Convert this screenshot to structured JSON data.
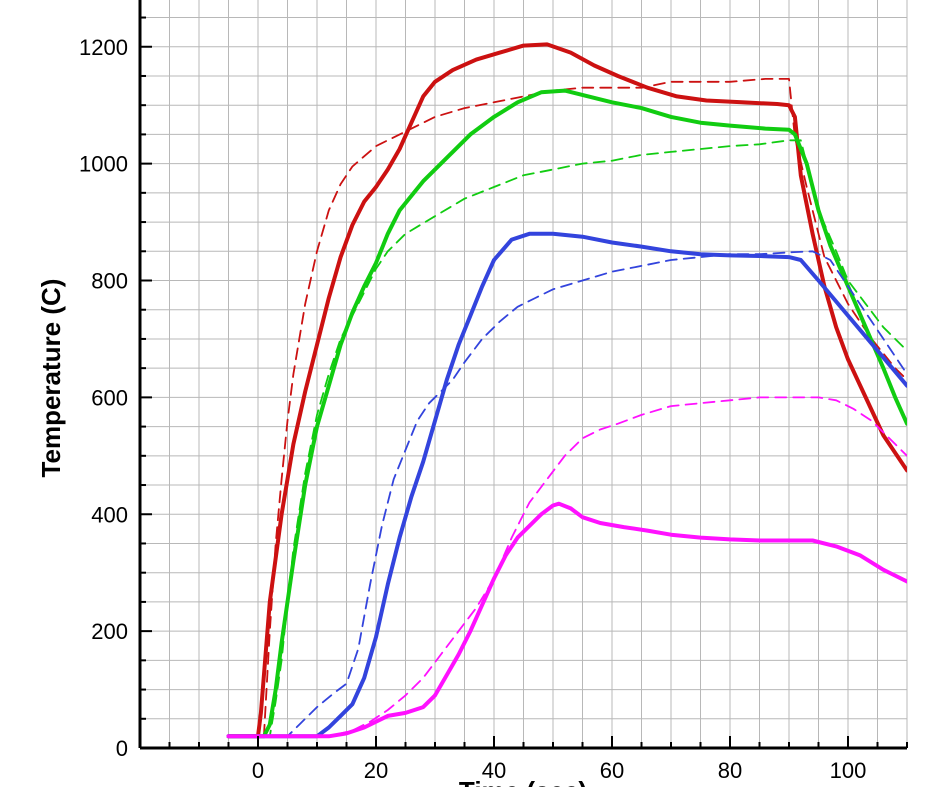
{
  "chart_data": {
    "type": "line",
    "title": "",
    "xlabel": "Time (sec)",
    "ylabel": "Temperature (C)",
    "xlim": [
      -20,
      110
    ],
    "ylim": [
      0,
      1280
    ],
    "grid": true,
    "x_ticks": [
      0,
      20,
      40,
      60,
      80,
      100
    ],
    "y_ticks": [
      0,
      200,
      400,
      600,
      800,
      1000,
      1200
    ],
    "series": [
      {
        "name": "red-solid",
        "color": "#cc1111",
        "style": "solid",
        "points": [
          [
            -5,
            20
          ],
          [
            0,
            20
          ],
          [
            0.5,
            60
          ],
          [
            2,
            250
          ],
          [
            4,
            400
          ],
          [
            6,
            520
          ],
          [
            8,
            610
          ],
          [
            10,
            690
          ],
          [
            12,
            770
          ],
          [
            14,
            840
          ],
          [
            16,
            895
          ],
          [
            18,
            935
          ],
          [
            20,
            960
          ],
          [
            22,
            990
          ],
          [
            24,
            1025
          ],
          [
            26,
            1070
          ],
          [
            28,
            1115
          ],
          [
            30,
            1140
          ],
          [
            33,
            1160
          ],
          [
            37,
            1178
          ],
          [
            41,
            1190
          ],
          [
            45,
            1202
          ],
          [
            49,
            1204
          ],
          [
            53,
            1190
          ],
          [
            57,
            1168
          ],
          [
            61,
            1150
          ],
          [
            66,
            1130
          ],
          [
            71,
            1115
          ],
          [
            76,
            1108
          ],
          [
            82,
            1105
          ],
          [
            88,
            1102
          ],
          [
            90,
            1100
          ],
          [
            90.5,
            1090
          ],
          [
            91,
            1080
          ],
          [
            92,
            980
          ],
          [
            94,
            880
          ],
          [
            96,
            790
          ],
          [
            98,
            720
          ],
          [
            100,
            665
          ],
          [
            103,
            600
          ],
          [
            106,
            535
          ],
          [
            110,
            475
          ]
        ]
      },
      {
        "name": "red-dashed",
        "color": "#cc1111",
        "style": "dashed",
        "points": [
          [
            -5,
            20
          ],
          [
            1,
            20
          ],
          [
            2,
            200
          ],
          [
            3,
            350
          ],
          [
            4,
            460
          ],
          [
            5,
            560
          ],
          [
            6,
            640
          ],
          [
            8,
            760
          ],
          [
            10,
            850
          ],
          [
            12,
            920
          ],
          [
            14,
            965
          ],
          [
            16,
            995
          ],
          [
            20,
            1030
          ],
          [
            25,
            1055
          ],
          [
            30,
            1080
          ],
          [
            35,
            1095
          ],
          [
            40,
            1105
          ],
          [
            45,
            1115
          ],
          [
            50,
            1125
          ],
          [
            55,
            1130
          ],
          [
            60,
            1130
          ],
          [
            65,
            1130
          ],
          [
            70,
            1140
          ],
          [
            80,
            1140
          ],
          [
            86,
            1145
          ],
          [
            90,
            1145
          ],
          [
            91,
            1045
          ],
          [
            93,
            960
          ],
          [
            96,
            840
          ],
          [
            100,
            760
          ],
          [
            104,
            700
          ],
          [
            108,
            650
          ],
          [
            110,
            630
          ]
        ]
      },
      {
        "name": "green-solid",
        "color": "#11cc11",
        "style": "solid",
        "points": [
          [
            -5,
            20
          ],
          [
            1,
            20
          ],
          [
            2,
            40
          ],
          [
            3,
            100
          ],
          [
            4,
            180
          ],
          [
            6,
            320
          ],
          [
            8,
            450
          ],
          [
            10,
            550
          ],
          [
            12,
            620
          ],
          [
            14,
            690
          ],
          [
            16,
            745
          ],
          [
            18,
            790
          ],
          [
            20,
            830
          ],
          [
            22,
            880
          ],
          [
            24,
            920
          ],
          [
            28,
            970
          ],
          [
            32,
            1010
          ],
          [
            36,
            1050
          ],
          [
            40,
            1080
          ],
          [
            44,
            1105
          ],
          [
            48,
            1122
          ],
          [
            52,
            1125
          ],
          [
            56,
            1115
          ],
          [
            60,
            1105
          ],
          [
            65,
            1095
          ],
          [
            70,
            1080
          ],
          [
            75,
            1070
          ],
          [
            80,
            1065
          ],
          [
            86,
            1060
          ],
          [
            90,
            1058
          ],
          [
            91,
            1050
          ],
          [
            93,
            1000
          ],
          [
            95,
            920
          ],
          [
            97,
            860
          ],
          [
            100,
            790
          ],
          [
            103,
            720
          ],
          [
            106,
            650
          ],
          [
            108,
            600
          ],
          [
            110,
            555
          ]
        ]
      },
      {
        "name": "green-dashed",
        "color": "#11cc11",
        "style": "dashed",
        "points": [
          [
            -5,
            20
          ],
          [
            2,
            20
          ],
          [
            3,
            80
          ],
          [
            4,
            150
          ],
          [
            5,
            250
          ],
          [
            6,
            340
          ],
          [
            8,
            470
          ],
          [
            10,
            570
          ],
          [
            12,
            640
          ],
          [
            14,
            700
          ],
          [
            16,
            740
          ],
          [
            18,
            780
          ],
          [
            20,
            820
          ],
          [
            22,
            850
          ],
          [
            25,
            880
          ],
          [
            30,
            910
          ],
          [
            35,
            940
          ],
          [
            40,
            960
          ],
          [
            45,
            980
          ],
          [
            50,
            990
          ],
          [
            55,
            1000
          ],
          [
            60,
            1005
          ],
          [
            65,
            1015
          ],
          [
            70,
            1020
          ],
          [
            75,
            1025
          ],
          [
            80,
            1030
          ],
          [
            85,
            1033
          ],
          [
            90,
            1040
          ],
          [
            92,
            1040
          ],
          [
            95,
            920
          ],
          [
            98,
            850
          ],
          [
            100,
            800
          ],
          [
            103,
            760
          ],
          [
            106,
            720
          ],
          [
            110,
            680
          ]
        ]
      },
      {
        "name": "blue-solid",
        "color": "#3344dd",
        "style": "solid",
        "points": [
          [
            -5,
            20
          ],
          [
            10,
            20
          ],
          [
            12,
            35
          ],
          [
            14,
            55
          ],
          [
            16,
            75
          ],
          [
            18,
            120
          ],
          [
            20,
            190
          ],
          [
            22,
            280
          ],
          [
            24,
            360
          ],
          [
            26,
            430
          ],
          [
            28,
            490
          ],
          [
            30,
            560
          ],
          [
            32,
            630
          ],
          [
            34,
            690
          ],
          [
            36,
            740
          ],
          [
            38,
            790
          ],
          [
            40,
            835
          ],
          [
            43,
            870
          ],
          [
            46,
            880
          ],
          [
            50,
            880
          ],
          [
            55,
            875
          ],
          [
            60,
            865
          ],
          [
            65,
            858
          ],
          [
            70,
            850
          ],
          [
            75,
            845
          ],
          [
            80,
            843
          ],
          [
            85,
            842
          ],
          [
            90,
            840
          ],
          [
            92,
            835
          ],
          [
            95,
            800
          ],
          [
            100,
            740
          ],
          [
            105,
            680
          ],
          [
            110,
            620
          ]
        ]
      },
      {
        "name": "blue-dashed",
        "color": "#3344dd",
        "style": "dashed",
        "points": [
          [
            -5,
            20
          ],
          [
            5,
            20
          ],
          [
            7,
            40
          ],
          [
            10,
            70
          ],
          [
            13,
            95
          ],
          [
            15,
            110
          ],
          [
            17,
            170
          ],
          [
            19,
            280
          ],
          [
            21,
            380
          ],
          [
            23,
            460
          ],
          [
            25,
            510
          ],
          [
            27,
            560
          ],
          [
            29,
            590
          ],
          [
            31,
            610
          ],
          [
            33,
            630
          ],
          [
            35,
            660
          ],
          [
            38,
            700
          ],
          [
            41,
            730
          ],
          [
            44,
            755
          ],
          [
            47,
            770
          ],
          [
            50,
            785
          ],
          [
            55,
            800
          ],
          [
            60,
            815
          ],
          [
            65,
            825
          ],
          [
            70,
            835
          ],
          [
            75,
            840
          ],
          [
            80,
            845
          ],
          [
            85,
            845
          ],
          [
            90,
            848
          ],
          [
            94,
            850
          ],
          [
            97,
            835
          ],
          [
            100,
            790
          ],
          [
            103,
            745
          ],
          [
            106,
            700
          ],
          [
            108,
            670
          ],
          [
            110,
            640
          ]
        ]
      },
      {
        "name": "magenta-solid",
        "color": "#ff11ff",
        "style": "solid",
        "points": [
          [
            -5,
            20
          ],
          [
            12,
            20
          ],
          [
            15,
            25
          ],
          [
            18,
            35
          ],
          [
            20,
            45
          ],
          [
            22,
            55
          ],
          [
            25,
            60
          ],
          [
            28,
            70
          ],
          [
            30,
            90
          ],
          [
            32,
            125
          ],
          [
            34,
            160
          ],
          [
            36,
            200
          ],
          [
            38,
            245
          ],
          [
            40,
            290
          ],
          [
            42,
            330
          ],
          [
            44,
            360
          ],
          [
            46,
            380
          ],
          [
            48,
            400
          ],
          [
            50,
            415
          ],
          [
            51,
            418
          ],
          [
            53,
            410
          ],
          [
            55,
            395
          ],
          [
            58,
            385
          ],
          [
            62,
            378
          ],
          [
            66,
            372
          ],
          [
            70,
            365
          ],
          [
            75,
            360
          ],
          [
            80,
            357
          ],
          [
            85,
            355
          ],
          [
            90,
            355
          ],
          [
            94,
            355
          ],
          [
            98,
            345
          ],
          [
            102,
            330
          ],
          [
            106,
            305
          ],
          [
            110,
            285
          ]
        ]
      },
      {
        "name": "magenta-dashed",
        "color": "#ff11ff",
        "style": "dashed",
        "points": [
          [
            -5,
            20
          ],
          [
            12,
            20
          ],
          [
            16,
            30
          ],
          [
            19,
            45
          ],
          [
            22,
            65
          ],
          [
            25,
            90
          ],
          [
            28,
            120
          ],
          [
            31,
            160
          ],
          [
            34,
            200
          ],
          [
            37,
            240
          ],
          [
            40,
            290
          ],
          [
            43,
            360
          ],
          [
            46,
            420
          ],
          [
            49,
            460
          ],
          [
            52,
            500
          ],
          [
            55,
            530
          ],
          [
            58,
            545
          ],
          [
            61,
            555
          ],
          [
            65,
            570
          ],
          [
            70,
            585
          ],
          [
            75,
            590
          ],
          [
            80,
            595
          ],
          [
            85,
            600
          ],
          [
            90,
            600
          ],
          [
            95,
            600
          ],
          [
            98,
            595
          ],
          [
            101,
            580
          ],
          [
            104,
            560
          ],
          [
            107,
            530
          ],
          [
            110,
            500
          ]
        ]
      }
    ]
  }
}
